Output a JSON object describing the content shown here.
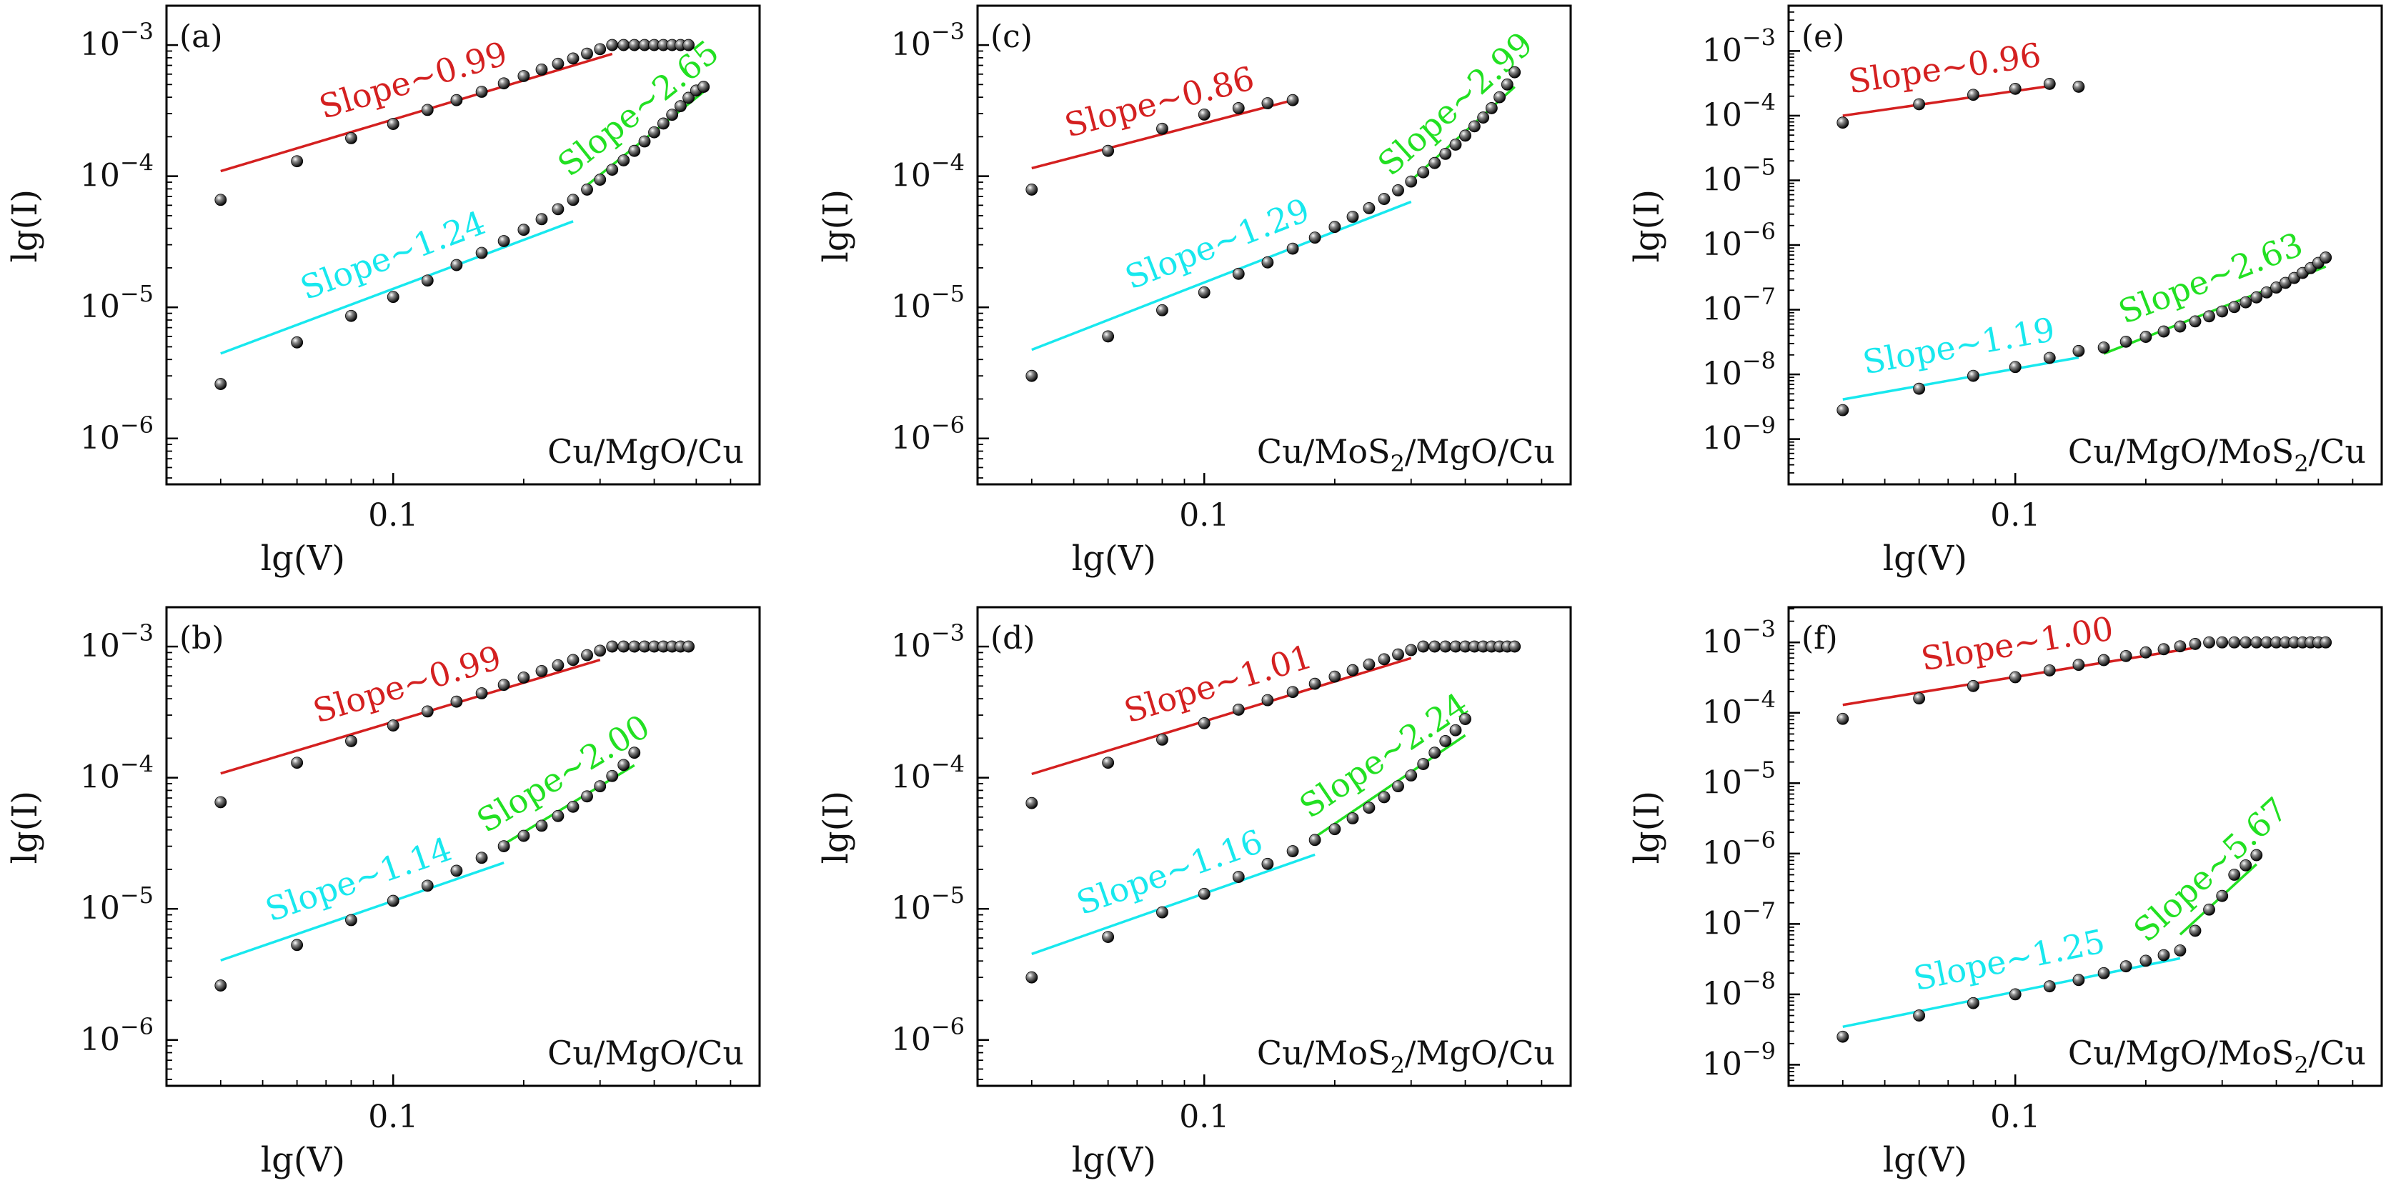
{
  "figure": {
    "panel_grid": "3 columns x 2 rows",
    "fit_colors": {
      "ohmic": "#d42020",
      "low": "#18e8ee",
      "high": "#22e022"
    },
    "marker": "black sphere"
  },
  "chart_data": [
    {
      "type": "scatter",
      "panel_label": "(a)",
      "device": "Cu/MgO/Cu",
      "device_sub": "",
      "xlabel": "lg(V)",
      "ylabel": "lg(I)",
      "x_scale": "log",
      "y_scale": "log",
      "xlim": [
        0.03,
        0.7
      ],
      "ylim_log10": [
        -6.35,
        -2.7
      ],
      "x_tick_labels": [
        "0.1"
      ],
      "y_tick_exponents": [
        -3,
        -4,
        -5,
        -6
      ],
      "series": [
        {
          "name": "",
          "color": "#000000",
          "x": [
            0.04,
            0.06,
            0.08,
            0.1,
            0.12,
            0.14,
            0.16,
            0.18,
            0.2,
            0.22,
            0.24,
            0.26,
            0.28,
            0.3,
            0.32,
            0.34,
            0.36,
            0.38,
            0.4,
            0.42,
            0.44,
            0.46,
            0.48
          ],
          "y": [
            6.6e-05,
            0.00013,
            0.000195,
            0.00025,
            0.00032,
            0.00038,
            0.00044,
            0.00051,
            0.00058,
            0.00065,
            0.00072,
            0.00079,
            0.00086,
            0.00093,
            0.001,
            0.001,
            0.001,
            0.001,
            0.001,
            0.001,
            0.001,
            0.001,
            0.001
          ]
        },
        {
          "name": "",
          "color": "#000000",
          "x": [
            0.04,
            0.06,
            0.08,
            0.1,
            0.12,
            0.14,
            0.16,
            0.18,
            0.2,
            0.22,
            0.24,
            0.26,
            0.28,
            0.3,
            0.32,
            0.34,
            0.36,
            0.38,
            0.4,
            0.42,
            0.44,
            0.46,
            0.48,
            0.5,
            0.52
          ],
          "y": [
            2.6e-06,
            5.4e-06,
            8.6e-06,
            1.2e-05,
            1.6e-05,
            2.1e-05,
            2.6e-05,
            3.2e-05,
            3.9e-05,
            4.7e-05,
            5.6e-05,
            6.6e-05,
            7.9e-05,
            9.4e-05,
            0.000112,
            0.000132,
            0.000156,
            0.000184,
            0.000216,
            0.000252,
            0.000294,
            0.000342,
            0.000396,
            0.00045,
            0.00048
          ]
        }
      ],
      "fits": [
        {
          "label": "Slope∼0.99",
          "slope": 0.99,
          "color": "#d42020",
          "x_range": [
            0.04,
            0.32
          ]
        },
        {
          "label": "Slope∼1.24",
          "slope": 1.24,
          "color": "#18e8ee",
          "x_range": [
            0.04,
            0.26
          ]
        },
        {
          "label": "Slope∼2.65",
          "slope": 2.65,
          "color": "#22e022",
          "x_range": [
            0.28,
            0.52
          ]
        }
      ]
    },
    {
      "type": "scatter",
      "panel_label": "(c)",
      "device": "Cu/MoS",
      "device_sub": "2",
      "device_rest": "/MgO/Cu",
      "xlabel": "lg(V)",
      "ylabel": "lg(I)",
      "x_scale": "log",
      "y_scale": "log",
      "xlim": [
        0.03,
        0.7
      ],
      "ylim_log10": [
        -6.35,
        -2.7
      ],
      "x_tick_labels": [
        "0.1"
      ],
      "y_tick_exponents": [
        -3,
        -4,
        -5,
        -6
      ],
      "series": [
        {
          "name": "",
          "color": "#000000",
          "x": [
            0.04,
            0.06,
            0.08,
            0.1,
            0.12,
            0.14,
            0.16
          ],
          "y": [
            7.9e-05,
            0.000156,
            0.00023,
            0.000295,
            0.00033,
            0.00036,
            0.00038
          ]
        },
        {
          "name": "",
          "color": "#000000",
          "x": [
            0.04,
            0.06,
            0.08,
            0.1,
            0.12,
            0.14,
            0.16,
            0.18,
            0.2,
            0.22,
            0.24,
            0.26,
            0.28,
            0.3,
            0.32,
            0.34,
            0.36,
            0.38,
            0.4,
            0.42,
            0.44,
            0.46,
            0.48,
            0.5,
            0.52
          ],
          "y": [
            3e-06,
            6e-06,
            9.5e-06,
            1.3e-05,
            1.8e-05,
            2.2e-05,
            2.8e-05,
            3.4e-05,
            4.1e-05,
            4.9e-05,
            5.7e-05,
            6.7e-05,
            7.8e-05,
            9.1e-05,
            0.000107,
            0.000126,
            0.000148,
            0.000174,
            0.000204,
            0.00024,
            0.00028,
            0.00033,
            0.0004,
            0.0005,
            0.00062
          ]
        }
      ],
      "fits": [
        {
          "label": "Slope∼0.86",
          "slope": 0.86,
          "color": "#d42020",
          "x_range": [
            0.04,
            0.16
          ]
        },
        {
          "label": "Slope∼1.29",
          "slope": 1.29,
          "color": "#18e8ee",
          "x_range": [
            0.04,
            0.3
          ]
        },
        {
          "label": "Slope∼2.99",
          "slope": 2.99,
          "color": "#22e022",
          "x_range": [
            0.3,
            0.52
          ]
        }
      ]
    },
    {
      "type": "scatter",
      "panel_label": "(e)",
      "device": "Cu/MgO/MoS",
      "device_sub": "2",
      "device_rest": "/Cu",
      "xlabel": "lg(V)",
      "ylabel": "lg(I)",
      "x_scale": "log",
      "y_scale": "log",
      "xlim": [
        0.03,
        0.7
      ],
      "ylim_log10": [
        -9.7,
        -2.3
      ],
      "x_tick_labels": [
        "0.1"
      ],
      "y_tick_exponents": [
        -3,
        -4,
        -5,
        -6,
        -7,
        -8,
        -9
      ],
      "series": [
        {
          "name": "",
          "color": "#000000",
          "x": [
            0.04,
            0.06,
            0.08,
            0.1,
            0.12,
            0.14
          ],
          "y": [
            7.8e-05,
            0.00015,
            0.00021,
            0.00026,
            0.00031,
            0.00028
          ]
        },
        {
          "name": "",
          "color": "#000000",
          "x": [
            0.04,
            0.06,
            0.08,
            0.1,
            0.12,
            0.14,
            0.16,
            0.18,
            0.2,
            0.22,
            0.24,
            0.26,
            0.28,
            0.3,
            0.32,
            0.34,
            0.36,
            0.38,
            0.4,
            0.42,
            0.44,
            0.46,
            0.48,
            0.5,
            0.52
          ],
          "y": [
            2.8e-09,
            6e-09,
            9.5e-09,
            1.3e-08,
            1.8e-08,
            2.3e-08,
            2.6e-08,
            3.2e-08,
            3.8e-08,
            4.6e-08,
            5.5e-08,
            6.6e-08,
            7.9e-08,
            9.4e-08,
            1.1e-07,
            1.3e-07,
            1.55e-07,
            1.85e-07,
            2.2e-07,
            2.6e-07,
            3.1e-07,
            3.7e-07,
            4.4e-07,
            5.3e-07,
            6.4e-07
          ]
        }
      ],
      "fits": [
        {
          "label": "Slope∼0.96",
          "slope": 0.96,
          "color": "#d42020",
          "x_range": [
            0.04,
            0.12
          ]
        },
        {
          "label": "Slope∼1.19",
          "slope": 1.19,
          "color": "#18e8ee",
          "x_range": [
            0.04,
            0.14
          ]
        },
        {
          "label": "Slope∼2.63",
          "slope": 2.63,
          "color": "#22e022",
          "x_range": [
            0.16,
            0.52
          ]
        }
      ]
    },
    {
      "type": "scatter",
      "panel_label": "(b)",
      "device": "Cu/MgO/Cu",
      "device_sub": "",
      "xlabel": "lg(V)",
      "ylabel": "lg(I)",
      "x_scale": "log",
      "y_scale": "log",
      "xlim": [
        0.03,
        0.7
      ],
      "ylim_log10": [
        -6.35,
        -2.7
      ],
      "x_tick_labels": [
        "0.1"
      ],
      "y_tick_exponents": [
        -3,
        -4,
        -5,
        -6
      ],
      "series": [
        {
          "name": "",
          "color": "#000000",
          "x": [
            0.04,
            0.06,
            0.08,
            0.1,
            0.12,
            0.14,
            0.16,
            0.18,
            0.2,
            0.22,
            0.24,
            0.26,
            0.28,
            0.3,
            0.32,
            0.34,
            0.36,
            0.38,
            0.4,
            0.42,
            0.44,
            0.46,
            0.48
          ],
          "y": [
            6.5e-05,
            0.00013,
            0.00019,
            0.00025,
            0.00032,
            0.00038,
            0.00044,
            0.00051,
            0.00058,
            0.00065,
            0.00072,
            0.00079,
            0.00086,
            0.00093,
            0.001,
            0.001,
            0.001,
            0.001,
            0.001,
            0.001,
            0.001,
            0.001,
            0.001
          ]
        },
        {
          "name": "",
          "color": "#000000",
          "x": [
            0.04,
            0.06,
            0.08,
            0.1,
            0.12,
            0.14,
            0.16,
            0.18,
            0.2,
            0.22,
            0.24,
            0.26,
            0.28,
            0.3,
            0.32,
            0.34,
            0.36
          ],
          "y": [
            2.6e-06,
            5.3e-06,
            8.2e-06,
            1.15e-05,
            1.5e-05,
            1.95e-05,
            2.45e-05,
            3e-05,
            3.6e-05,
            4.3e-05,
            5.1e-05,
            6e-05,
            7.2e-05,
            8.6e-05,
            0.000103,
            0.000125,
            0.000155
          ]
        }
      ],
      "fits": [
        {
          "label": "Slope∼0.99",
          "slope": 0.99,
          "color": "#d42020",
          "x_range": [
            0.04,
            0.3
          ]
        },
        {
          "label": "Slope∼1.14",
          "slope": 1.14,
          "color": "#18e8ee",
          "x_range": [
            0.04,
            0.18
          ]
        },
        {
          "label": "Slope∼2.00",
          "slope": 2.0,
          "color": "#22e022",
          "x_range": [
            0.18,
            0.36
          ]
        }
      ]
    },
    {
      "type": "scatter",
      "panel_label": "(d)",
      "device": "Cu/MoS",
      "device_sub": "2",
      "device_rest": "/MgO/Cu",
      "xlabel": "lg(V)",
      "ylabel": "lg(I)",
      "x_scale": "log",
      "y_scale": "log",
      "xlim": [
        0.03,
        0.7
      ],
      "ylim_log10": [
        -6.35,
        -2.7
      ],
      "x_tick_labels": [
        "0.1"
      ],
      "y_tick_exponents": [
        -3,
        -4,
        -5,
        -6
      ],
      "series": [
        {
          "name": "",
          "color": "#000000",
          "x": [
            0.04,
            0.06,
            0.08,
            0.1,
            0.12,
            0.14,
            0.16,
            0.18,
            0.2,
            0.22,
            0.24,
            0.26,
            0.28,
            0.3,
            0.32,
            0.34,
            0.36,
            0.38,
            0.4,
            0.42,
            0.44,
            0.46,
            0.48,
            0.5,
            0.52
          ],
          "y": [
            6.4e-05,
            0.00013,
            0.000195,
            0.00026,
            0.00033,
            0.00039,
            0.00045,
            0.00052,
            0.00059,
            0.00066,
            0.00073,
            0.0008,
            0.00087,
            0.00094,
            0.001,
            0.001,
            0.001,
            0.001,
            0.001,
            0.001,
            0.001,
            0.001,
            0.001,
            0.001,
            0.001
          ]
        },
        {
          "name": "",
          "color": "#000000",
          "x": [
            0.04,
            0.06,
            0.08,
            0.1,
            0.12,
            0.14,
            0.16,
            0.18,
            0.2,
            0.22,
            0.24,
            0.26,
            0.28,
            0.3,
            0.32,
            0.34,
            0.36,
            0.38,
            0.4
          ],
          "y": [
            3e-06,
            6.1e-06,
            9.4e-06,
            1.3e-05,
            1.75e-05,
            2.2e-05,
            2.75e-05,
            3.35e-05,
            4.05e-05,
            4.9e-05,
            5.9e-05,
            7.1e-05,
            8.6e-05,
            0.000104,
            0.000127,
            0.000155,
            0.00019,
            0.00023,
            0.00028
          ]
        }
      ],
      "fits": [
        {
          "label": "Slope∼1.01",
          "slope": 1.01,
          "color": "#d42020",
          "x_range": [
            0.04,
            0.3
          ]
        },
        {
          "label": "Slope∼1.16",
          "slope": 1.16,
          "color": "#18e8ee",
          "x_range": [
            0.04,
            0.18
          ]
        },
        {
          "label": "Slope∼2.24",
          "slope": 2.24,
          "color": "#22e022",
          "x_range": [
            0.18,
            0.4
          ]
        }
      ]
    },
    {
      "type": "scatter",
      "panel_label": "(f)",
      "device": "Cu/MgO/MoS",
      "device_sub": "2",
      "device_rest": "/Cu",
      "xlabel": "lg(V)",
      "ylabel": "lg(I)",
      "x_scale": "log",
      "y_scale": "log",
      "xlim": [
        0.03,
        0.7
      ],
      "ylim_log10": [
        -9.3,
        -2.5
      ],
      "x_tick_labels": [
        "0.1"
      ],
      "y_tick_exponents": [
        -3,
        -4,
        -5,
        -6,
        -7,
        -8,
        -9
      ],
      "series": [
        {
          "name": "",
          "color": "#000000",
          "x": [
            0.04,
            0.06,
            0.08,
            0.1,
            0.12,
            0.14,
            0.16,
            0.18,
            0.2,
            0.22,
            0.24,
            0.26,
            0.28,
            0.3,
            0.32,
            0.34,
            0.36,
            0.38,
            0.4,
            0.42,
            0.44,
            0.46,
            0.48,
            0.5,
            0.52
          ],
          "y": [
            8.2e-05,
            0.00016,
            0.00024,
            0.00032,
            0.0004,
            0.00048,
            0.00056,
            0.00064,
            0.00072,
            0.0008,
            0.00088,
            0.00095,
            0.001,
            0.001,
            0.001,
            0.001,
            0.001,
            0.001,
            0.001,
            0.001,
            0.001,
            0.001,
            0.001,
            0.001,
            0.001
          ]
        },
        {
          "name": "",
          "color": "#000000",
          "x": [
            0.04,
            0.06,
            0.08,
            0.1,
            0.12,
            0.14,
            0.16,
            0.18,
            0.2,
            0.22,
            0.24,
            0.26,
            0.28,
            0.3,
            0.32,
            0.34,
            0.36
          ],
          "y": [
            2.5e-09,
            5e-09,
            7.5e-09,
            1e-08,
            1.3e-08,
            1.6e-08,
            2e-08,
            2.5e-08,
            3e-08,
            3.6e-08,
            4.2e-08,
            8e-08,
            1.6e-07,
            2.5e-07,
            5e-07,
            6.8e-07,
            9.5e-07
          ]
        }
      ],
      "fits": [
        {
          "label": "Slope∼1.00",
          "slope": 1.0,
          "color": "#d42020",
          "x_range": [
            0.04,
            0.26
          ]
        },
        {
          "label": "Slope∼1.25",
          "slope": 1.25,
          "color": "#18e8ee",
          "x_range": [
            0.04,
            0.24
          ]
        },
        {
          "label": "Slope∼5.67",
          "slope": 5.67,
          "color": "#22e022",
          "x_range": [
            0.24,
            0.36
          ]
        }
      ]
    }
  ]
}
